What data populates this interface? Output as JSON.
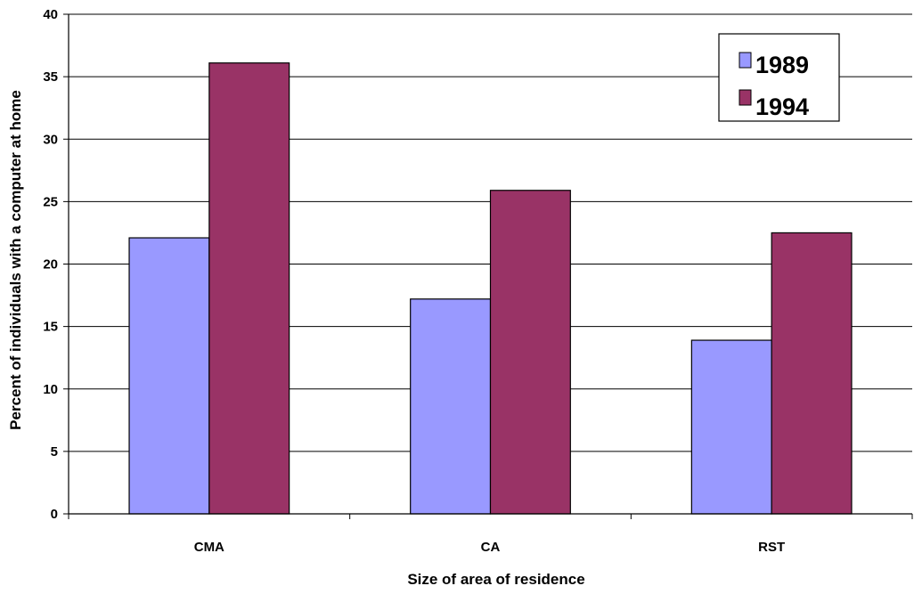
{
  "chart_data": {
    "type": "bar",
    "title": "",
    "categories": [
      "CMA",
      "CA",
      "RST"
    ],
    "series": [
      {
        "name": "1989",
        "values": [
          22.1,
          17.2,
          13.9
        ],
        "color": "#9999ff"
      },
      {
        "name": "1994",
        "values": [
          36.1,
          25.9,
          22.5
        ],
        "color": "#993366"
      }
    ],
    "xlabel": "Size of area of residence",
    "ylabel": "Percent of individuals with a computer at home",
    "ylim": [
      0,
      40
    ],
    "yticks": [
      0,
      5,
      10,
      15,
      20,
      25,
      30,
      35,
      40
    ],
    "grid": true,
    "legend_position": "top-right"
  }
}
